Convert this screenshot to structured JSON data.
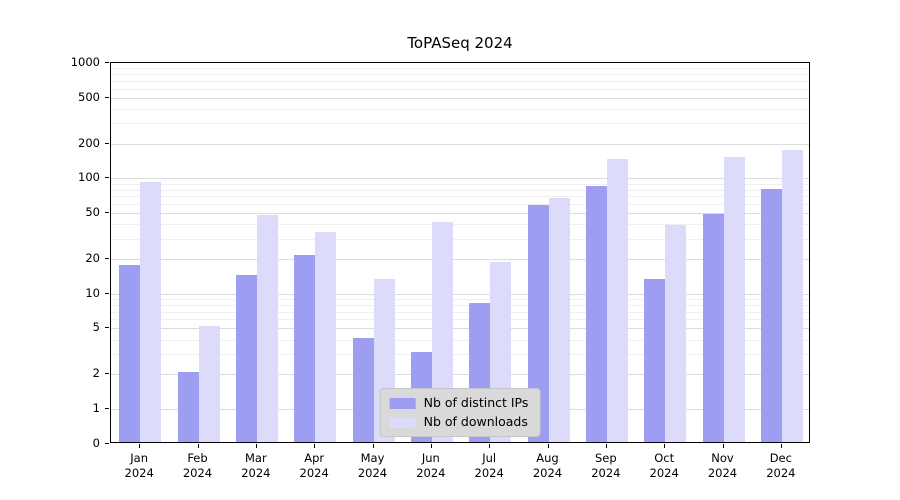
{
  "title": "ToPASeq 2024",
  "chart_data": {
    "type": "bar",
    "scale": "symlog",
    "title": "ToPASeq 2024",
    "xlabel": "",
    "ylabel": "",
    "grid": true,
    "legend_position": "lower center",
    "legend_background": "#d9d9d9",
    "yticks": [
      0,
      1,
      2,
      5,
      10,
      20,
      50,
      100,
      200,
      500,
      1000
    ],
    "ylim": [
      0,
      1000
    ],
    "categories": [
      "Jan\n2024",
      "Feb\n2024",
      "Mar\n2024",
      "Apr\n2024",
      "May\n2024",
      "Jun\n2024",
      "Jul\n2024",
      "Aug\n2024",
      "Sep\n2024",
      "Oct\n2024",
      "Nov\n2024",
      "Dec\n2024"
    ],
    "series": [
      {
        "name": "Nb of distinct IPs",
        "color": "#9d9df1",
        "values": [
          17,
          2,
          14,
          21,
          4,
          3,
          8,
          57,
          82,
          13,
          47,
          77
        ]
      },
      {
        "name": "Nb of downloads",
        "color": "#dcdcfa",
        "values": [
          90,
          5,
          46,
          33,
          13,
          40,
          18,
          65,
          140,
          38,
          148,
          170
        ]
      }
    ]
  }
}
